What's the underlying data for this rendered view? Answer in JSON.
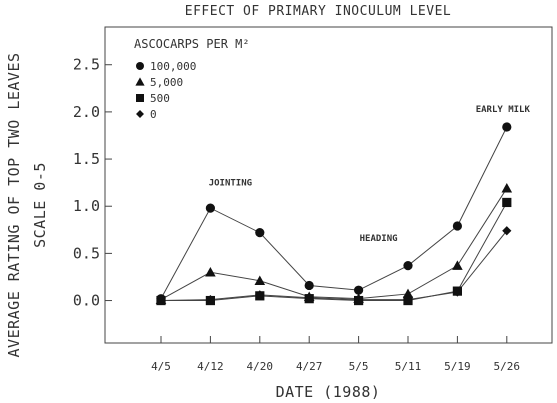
{
  "chart_data": {
    "type": "line",
    "title": "EFFECT OF PRIMARY INOCULUM LEVEL",
    "ylabel_line1": "AVERAGE RATING OF TOP TWO LEAVES",
    "ylabel_line2": "SCALE 0-5",
    "xlabel": "DATE (1988)",
    "categories": [
      "4/5",
      "4/12",
      "4/20",
      "4/27",
      "5/5",
      "5/11",
      "5/19",
      "5/26"
    ],
    "ylim": [
      -0.45,
      2.9
    ],
    "yticks": [
      "0.0",
      "0.5",
      "1.0",
      "1.5",
      "2.0",
      "2.5"
    ],
    "ytick_values": [
      0.0,
      0.5,
      1.0,
      1.5,
      2.0,
      2.5
    ],
    "grid": false,
    "legend_title": "ASCOCARPS PER M²",
    "legend_position": "top-left",
    "series": [
      {
        "name": "100,000",
        "marker": "circle",
        "values": [
          0.02,
          0.98,
          0.72,
          0.16,
          0.11,
          0.37,
          0.79,
          1.84
        ]
      },
      {
        "name": "5,000",
        "marker": "triangle",
        "values": [
          0.01,
          0.3,
          0.21,
          0.04,
          0.02,
          0.07,
          0.37,
          1.19
        ]
      },
      {
        "name": "500",
        "marker": "square",
        "values": [
          0.0,
          0.0,
          0.05,
          0.02,
          0.0,
          0.0,
          0.1,
          1.04
        ]
      },
      {
        "name": "0",
        "marker": "diamond",
        "values": [
          0.0,
          0.01,
          0.06,
          0.03,
          0.01,
          0.01,
          0.09,
          0.74
        ]
      }
    ],
    "annotations": [
      {
        "text": "JOINTING",
        "category": "4/12",
        "y": 1.22
      },
      {
        "text": "HEADING",
        "category": "5/5",
        "y": 0.63
      },
      {
        "text": "EARLY MILK",
        "category": "5/26",
        "y": 2.0
      }
    ],
    "colors": {
      "line": "#444444",
      "marker": "#111111",
      "text": "#333333"
    }
  }
}
